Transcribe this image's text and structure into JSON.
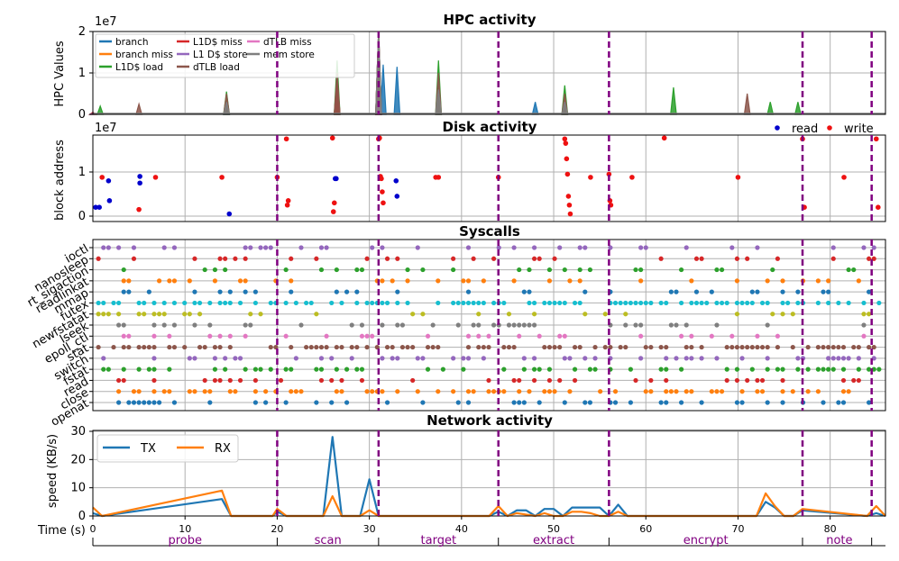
{
  "chart_data": [
    {
      "type": "area",
      "title": "HPC activity",
      "ylabel": "HPC Values",
      "xlabel": "",
      "ylim": [
        0,
        2
      ],
      "xlim": [
        0,
        86
      ],
      "yticks": [
        "0",
        "1",
        "2"
      ],
      "multiplier": "1e7",
      "grid": true,
      "legend_position": "top-left",
      "series": [
        {
          "name": "branch",
          "color": "#1f77b4",
          "x": [
            0,
            14.5,
            31,
            31.5,
            33,
            48
          ],
          "values": [
            0.05,
            0.3,
            2,
            1.2,
            1.15,
            0.3
          ]
        },
        {
          "name": "branch miss",
          "color": "#ff7f0e",
          "x": [
            0,
            31
          ],
          "values": [
            0.02,
            0.3
          ]
        },
        {
          "name": "L1D$ load",
          "color": "#2ca02c",
          "x": [
            0.8,
            14.5,
            26.5,
            31,
            37.5,
            51.2,
            63,
            73.5,
            76.5
          ],
          "values": [
            0.2,
            0.55,
            1.3,
            2,
            1.3,
            0.7,
            0.65,
            0.3,
            0.3
          ]
        },
        {
          "name": "L1D$ miss",
          "color": "#d62728",
          "x": [
            0,
            26.5,
            31
          ],
          "values": [
            0.05,
            0.9,
            2
          ]
        },
        {
          "name": "L1 D$ store",
          "color": "#9467bd",
          "x": [
            0,
            31
          ],
          "values": [
            0.02,
            0.2
          ]
        },
        {
          "name": "dTLB load",
          "color": "#8c564b",
          "x": [
            5,
            14.5,
            26.5,
            31,
            37.5,
            51.2,
            71
          ],
          "values": [
            0.25,
            0.5,
            1.0,
            2,
            1.0,
            0.5,
            0.5
          ]
        },
        {
          "name": "dTLB miss",
          "color": "#e377c2",
          "x": [
            31
          ],
          "values": [
            0.3
          ]
        },
        {
          "name": "mem store",
          "color": "#7f7f7f",
          "x": [
            14.5,
            31,
            37.5,
            51.2
          ],
          "values": [
            0.3,
            2,
            0.6,
            0.3
          ]
        }
      ]
    },
    {
      "type": "scatter",
      "title": "Disk activity",
      "ylabel": "block address",
      "xlabel": "",
      "ylim": [
        0,
        1.8
      ],
      "xlim": [
        0,
        86
      ],
      "yticks": [
        "0",
        "1"
      ],
      "multiplier": "1e7",
      "grid": true,
      "legend_position": "top-right",
      "series": [
        {
          "name": "read",
          "color": "#0000cc",
          "x": [
            0.3,
            0.7,
            1.7,
            1.8,
            5.1,
            5.1,
            14.8,
            26.3,
            26.4,
            32.9,
            33
          ],
          "values": [
            0.2,
            0.2,
            0.8,
            0.35,
            0.9,
            0.75,
            0.05,
            0.85,
            0.85,
            0.8,
            0.45
          ]
        },
        {
          "name": "write",
          "color": "#ee1111",
          "x": [
            1,
            5,
            6.8,
            14,
            20,
            21,
            21.1,
            21.2,
            26,
            26.1,
            26.2,
            31,
            31.1,
            31.2,
            31.3,
            31.4,
            31.5,
            37.2,
            37.5,
            44,
            51.2,
            51.3,
            51.4,
            51.5,
            51.6,
            51.7,
            51.8,
            54,
            56,
            56.1,
            56.2,
            58.5,
            62,
            70,
            77,
            77.2,
            81.5,
            85,
            85.2
          ],
          "values": [
            0.88,
            0.15,
            0.88,
            0.88,
            0.88,
            1.75,
            0.25,
            0.35,
            1.77,
            0.1,
            0.3,
            1.75,
            1.77,
            0.9,
            0.85,
            0.55,
            0.3,
            0.88,
            0.88,
            0.88,
            1.75,
            1.65,
            1.3,
            0.95,
            0.45,
            0.25,
            0.05,
            0.88,
            0.95,
            0.35,
            0.25,
            0.88,
            1.77,
            0.88,
            1.75,
            0.2,
            0.88,
            1.75,
            0.2
          ]
        }
      ]
    },
    {
      "type": "scatter",
      "title": "Syscalls",
      "ylabel": "",
      "xlabel": "",
      "xlim": [
        0,
        86
      ],
      "grid": true,
      "categories": [
        "openat",
        "close",
        "read",
        "fstat",
        "switch",
        "stat",
        "epoll_ctl",
        "lseek",
        "newfstatat",
        "futex",
        "mmap",
        "readlinkat",
        "rt_sigaction",
        "nanosleep",
        "ioctl"
      ],
      "category_colors": [
        "#1f77b4",
        "#ff7f0e",
        "#d62728",
        "#2ca02c",
        "#9467bd",
        "#8c564b",
        "#e377c2",
        "#7f7f7f",
        "#bcbd22",
        "#17becf",
        "#1f77b4",
        "#ff7f0e",
        "#2ca02c",
        "#d62728",
        "#9467bd"
      ]
    },
    {
      "type": "line",
      "title": "Network activity",
      "ylabel": "speed (KB/s)",
      "xlabel": "Time (s)",
      "ylim": [
        0,
        30
      ],
      "xlim": [
        0,
        86
      ],
      "yticks": [
        "0",
        "10",
        "20",
        "30"
      ],
      "xticks": [
        "0",
        "10",
        "20",
        "30",
        "40",
        "50",
        "60",
        "70",
        "80"
      ],
      "grid": true,
      "legend_position": "top-left",
      "x": [
        0,
        1,
        14,
        15,
        19.5,
        20,
        21,
        25,
        26,
        27,
        29,
        30,
        31,
        43,
        44,
        45,
        46,
        47,
        48,
        49,
        50,
        51,
        52,
        53,
        54,
        55,
        56,
        57,
        58,
        59,
        60,
        72,
        73,
        74,
        75,
        76,
        77,
        84,
        85,
        86
      ],
      "series": [
        {
          "name": "TX",
          "color": "#1f77b4",
          "values": [
            1,
            0,
            6,
            0,
            0,
            1.5,
            0,
            0,
            28,
            0,
            0,
            13,
            0,
            0,
            1.5,
            0,
            2,
            2,
            0,
            2.5,
            2.5,
            0,
            3,
            3,
            3,
            3,
            0,
            4,
            0,
            0,
            0,
            0,
            5,
            3,
            0,
            0,
            2,
            0,
            1,
            0
          ]
        },
        {
          "name": "RX",
          "color": "#ff7f0e",
          "values": [
            3,
            0,
            9,
            0,
            0,
            2.5,
            0,
            0,
            7,
            0,
            0,
            2,
            0,
            0,
            3.5,
            0,
            1,
            0.5,
            0,
            1,
            0,
            0,
            1.5,
            1.5,
            1,
            0,
            0,
            1.5,
            0,
            0,
            0,
            0,
            8,
            3.5,
            0,
            0,
            2.5,
            0,
            3.5,
            0
          ]
        }
      ]
    }
  ],
  "phases": {
    "boundaries": [
      20,
      31,
      44,
      56,
      77,
      84.5
    ],
    "labels": [
      "probe",
      "scan",
      "target",
      "extract",
      "encrypt",
      "note"
    ],
    "label_x": [
      10,
      25.5,
      37.5,
      50,
      66.5,
      81
    ],
    "line_color": "#800080"
  }
}
